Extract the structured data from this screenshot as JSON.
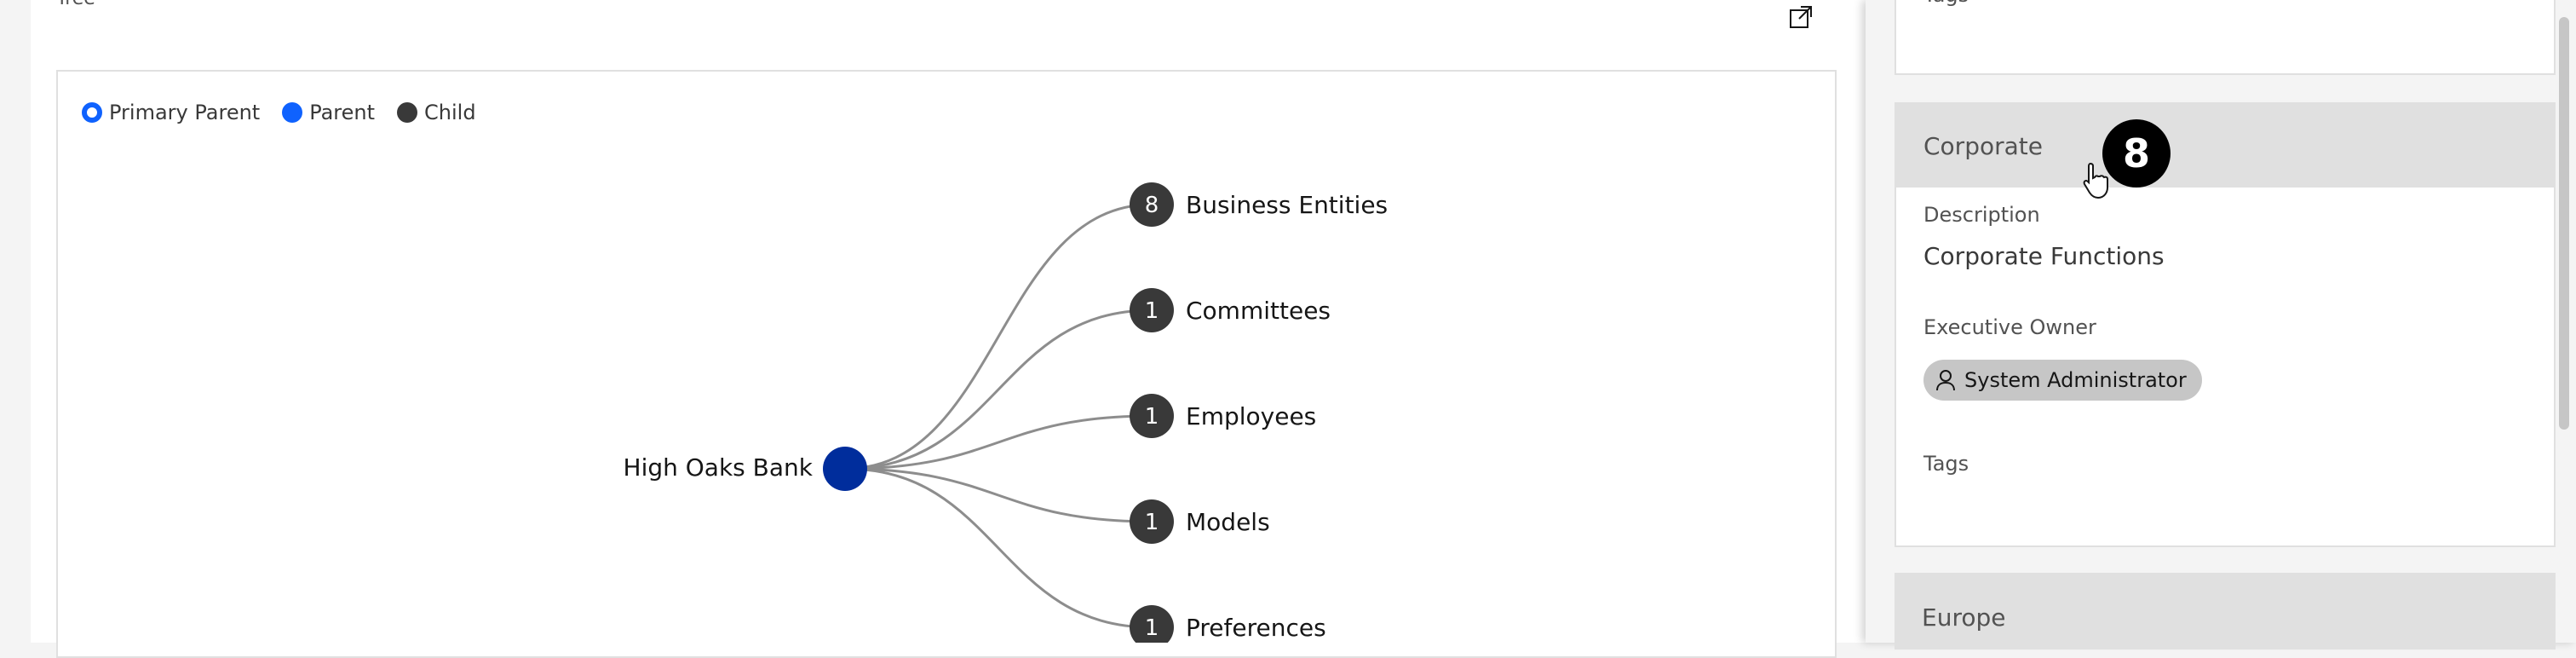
{
  "panel": {
    "title": "Tree"
  },
  "legend": {
    "primary_parent": "Primary Parent",
    "parent": "Parent",
    "child": "Child"
  },
  "tree": {
    "root": {
      "label": "High Oaks Bank"
    },
    "children": [
      {
        "label": "Business Entities",
        "count": "8"
      },
      {
        "label": "Committees",
        "count": "1"
      },
      {
        "label": "Employees",
        "count": "1"
      },
      {
        "label": "Models",
        "count": "1"
      },
      {
        "label": "Preferences",
        "count": "1"
      }
    ]
  },
  "side_panel": {
    "top_card": {
      "field_label": "Tags"
    },
    "corporate": {
      "title": "Corporate",
      "description_label": "Description",
      "description_value": "Corporate Functions",
      "owner_label": "Executive Owner",
      "owner_value": "System Administrator",
      "tags_label": "Tags"
    },
    "next_card_title": "Europe"
  },
  "badge": {
    "value": "8"
  },
  "colors": {
    "primary_blue": "#0f62fe",
    "root_blue": "#002d9c",
    "child_gray": "#393939"
  }
}
